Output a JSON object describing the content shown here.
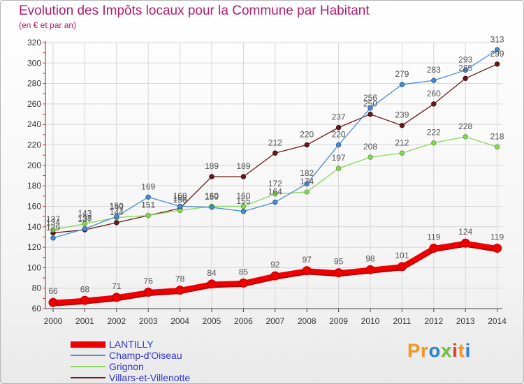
{
  "chart_data": {
    "type": "line",
    "title": "Evolution des Impôts locaux pour la Commune par Habitant",
    "subtitle": "(en € et par an)",
    "xlabel": "",
    "ylabel": "",
    "x": [
      "2000",
      "2001",
      "2002",
      "2003",
      "2004",
      "2005",
      "2006",
      "2007",
      "2008",
      "2009",
      "2010",
      "2011",
      "2012",
      "2013",
      "2014"
    ],
    "ylim": [
      60,
      320
    ],
    "yticks": [
      60,
      80,
      100,
      120,
      140,
      160,
      180,
      200,
      220,
      240,
      260,
      280,
      300,
      320
    ],
    "grid": true,
    "legend_position": "bottom-left",
    "series": [
      {
        "name": "LANTILLY",
        "color": "#ee0000",
        "values": [
          66,
          68,
          71,
          76,
          78,
          84,
          85,
          92,
          97,
          95,
          98,
          101,
          119,
          124,
          119
        ]
      },
      {
        "name": "Champ-d'Oiseau",
        "color": "#4a8cd1",
        "values": [
          129,
          138,
          150,
          169,
          160,
          159,
          155,
          164,
          182,
          220,
          256,
          279,
          283,
          293,
          313
        ]
      },
      {
        "name": "Grignon",
        "color": "#88d65a",
        "values": [
          137,
          143,
          149,
          151,
          156,
          160,
          160,
          172,
          174,
          197,
          208,
          212,
          222,
          228,
          218
        ]
      },
      {
        "name": "Villars-et-Villenotte",
        "color": "#6b1a1a",
        "values": [
          134,
          137,
          144,
          151,
          158,
          189,
          189,
          212,
          220,
          237,
          250,
          239,
          260,
          285,
          299
        ]
      }
    ]
  },
  "brand": {
    "text": "Proxiti",
    "letters": [
      {
        "ch": "P",
        "color": "#f39a1e"
      },
      {
        "ch": "r",
        "color": "#f39a1e"
      },
      {
        "ch": "o",
        "color": "#2f7fd6"
      },
      {
        "ch": "x",
        "color": "#6fbf3a"
      },
      {
        "ch": "i",
        "color": "#e03b2f"
      },
      {
        "ch": "t",
        "color": "#f39a1e"
      },
      {
        "ch": "i",
        "color": "#2f7fd6"
      }
    ]
  }
}
